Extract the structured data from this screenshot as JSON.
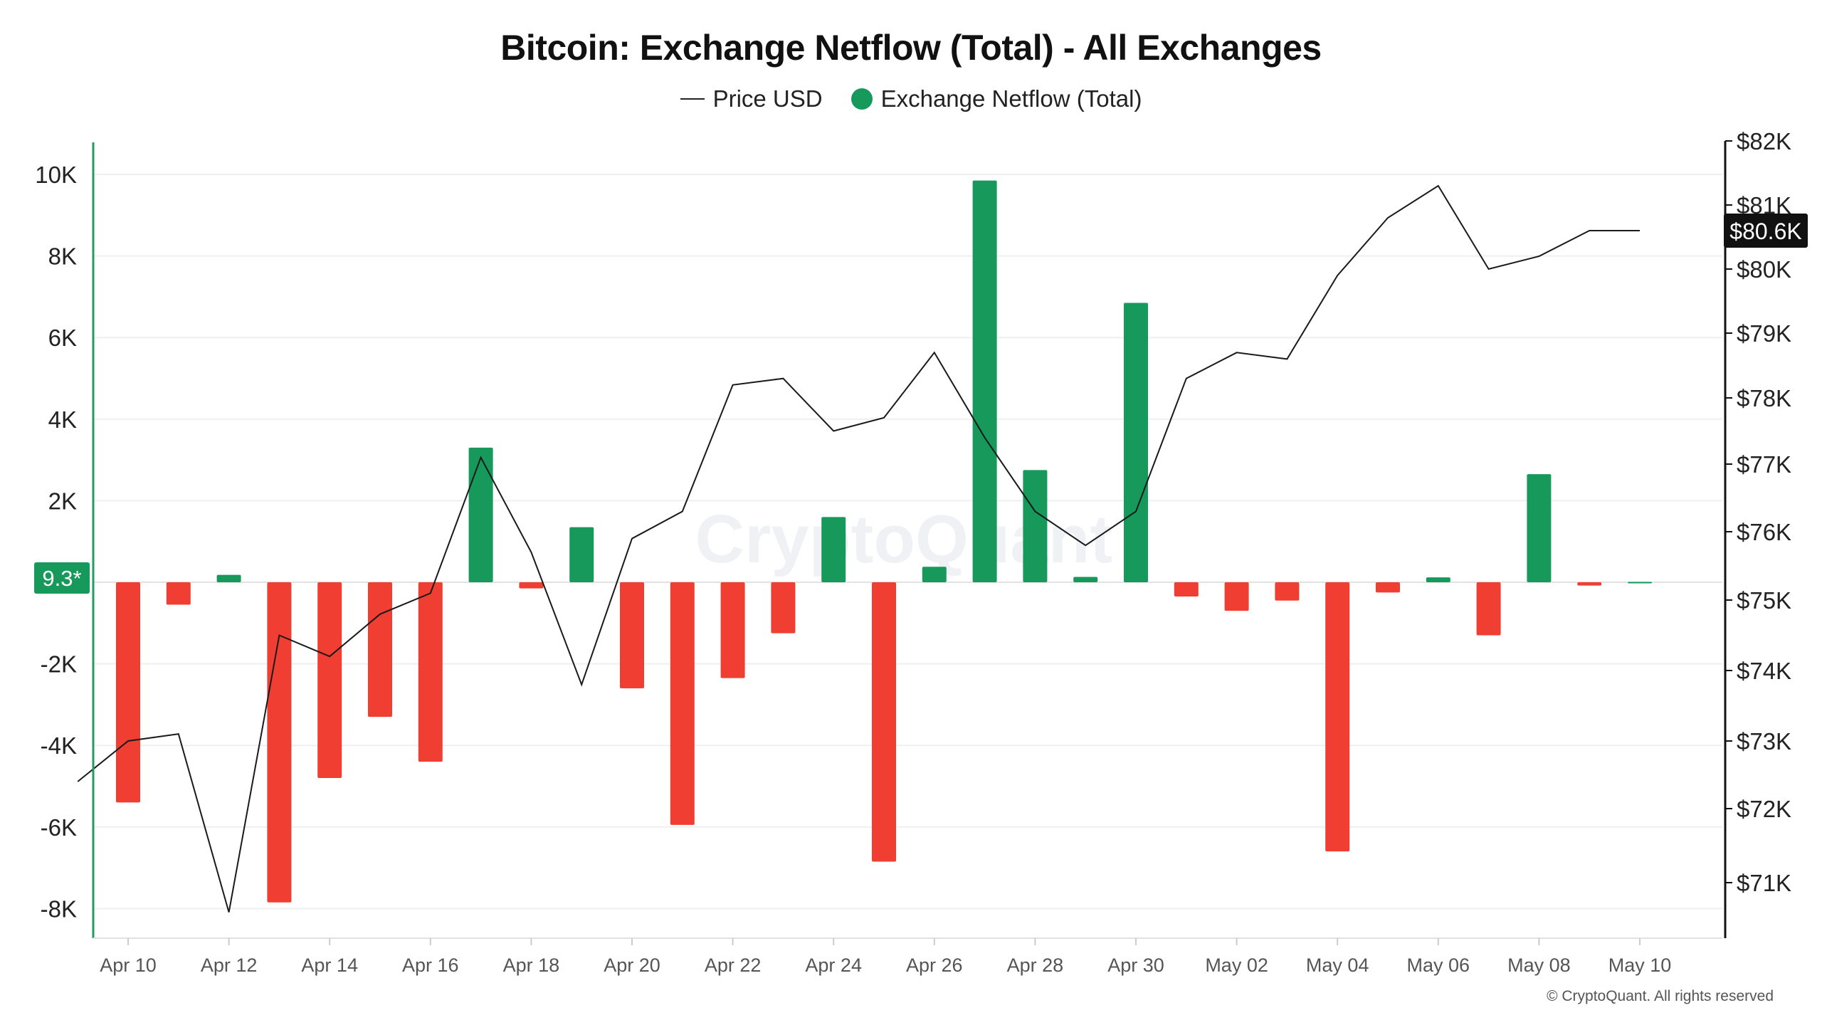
{
  "title": "Bitcoin: Exchange Netflow (Total) - All Exchanges",
  "legend": {
    "price_label": "Price USD",
    "netflow_label": "Exchange Netflow (Total)"
  },
  "watermark": "CryptoQuant",
  "footer": "© CryptoQuant. All rights reserved",
  "current_netflow_label": "9.3*",
  "current_price_label": "$80.6K",
  "colors": {
    "positive": "#17995C",
    "negative": "#F03E33",
    "price_line": "#1a1a1a",
    "left_axis": "#1f9e5f",
    "grid": "#efefef"
  },
  "chart_data": {
    "type": "bar",
    "left_axis": {
      "ylim": [
        -8800,
        10800
      ],
      "ticks": [
        -8000,
        -6000,
        -4000,
        -2000,
        0,
        2000,
        4000,
        6000,
        8000,
        10000
      ],
      "tick_labels": [
        "-8K",
        "-6K",
        "-4K",
        "-2K",
        "",
        "2K",
        "4K",
        "6K",
        "8K",
        "10K"
      ]
    },
    "right_axis": {
      "ticks": [
        71,
        72,
        73,
        74,
        75,
        76,
        77,
        78,
        79,
        80,
        81,
        82
      ],
      "tick_labels": [
        "$71K",
        "$72K",
        "$73K",
        "$74K",
        "$75K",
        "$76K",
        "$77K",
        "$78K",
        "$79K",
        "$80K",
        "$81K",
        "$82K"
      ]
    },
    "x_tick_labels": [
      "Apr 10",
      "Apr 12",
      "Apr 14",
      "Apr 16",
      "Apr 18",
      "Apr 20",
      "Apr 22",
      "Apr 24",
      "Apr 26",
      "Apr 28",
      "Apr 30",
      "May 02",
      "May 04",
      "May 06",
      "May 08",
      "May 10"
    ],
    "categories": [
      "Apr 10",
      "Apr 11",
      "Apr 12",
      "Apr 13",
      "Apr 14",
      "Apr 15",
      "Apr 16",
      "Apr 17",
      "Apr 18",
      "Apr 19",
      "Apr 20",
      "Apr 21",
      "Apr 22",
      "Apr 23",
      "Apr 24",
      "Apr 25",
      "Apr 26",
      "Apr 27",
      "Apr 28",
      "Apr 29",
      "Apr 30",
      "May 01",
      "May 02",
      "May 03",
      "May 04",
      "May 05",
      "May 06",
      "May 07",
      "May 08",
      "May 09",
      "May 10"
    ],
    "series": [
      {
        "name": "Exchange Netflow (Total)",
        "values": [
          -5400,
          -550,
          180,
          -7850,
          -4800,
          -3300,
          -4400,
          3300,
          -150,
          1350,
          -2600,
          -5950,
          -2350,
          -1250,
          1600,
          -6850,
          380,
          9850,
          2750,
          130,
          6850,
          -350,
          -700,
          -450,
          -6600,
          -250,
          120,
          -1300,
          2650,
          -80,
          9.3
        ]
      },
      {
        "name": "Price USD",
        "x": [
          "Apr 09",
          "Apr 10",
          "Apr 11",
          "Apr 12",
          "Apr 13",
          "Apr 14",
          "Apr 15",
          "Apr 16",
          "Apr 17",
          "Apr 18",
          "Apr 19",
          "Apr 20",
          "Apr 21",
          "Apr 22",
          "Apr 23",
          "Apr 24",
          "Apr 25",
          "Apr 26",
          "Apr 27",
          "Apr 28",
          "Apr 29",
          "Apr 30",
          "May 01",
          "May 02",
          "May 03",
          "May 04",
          "May 05",
          "May 06",
          "May 07",
          "May 08",
          "May 09",
          "May 10"
        ],
        "values": [
          72.4,
          73.0,
          73.1,
          70.6,
          74.5,
          74.2,
          74.8,
          75.1,
          77.1,
          75.7,
          73.8,
          75.9,
          76.3,
          78.2,
          78.3,
          77.5,
          77.7,
          78.7,
          77.4,
          76.3,
          75.8,
          76.3,
          78.3,
          78.7,
          78.6,
          79.9,
          80.8,
          81.3,
          80.0,
          80.2,
          80.6,
          80.6
        ]
      }
    ]
  }
}
